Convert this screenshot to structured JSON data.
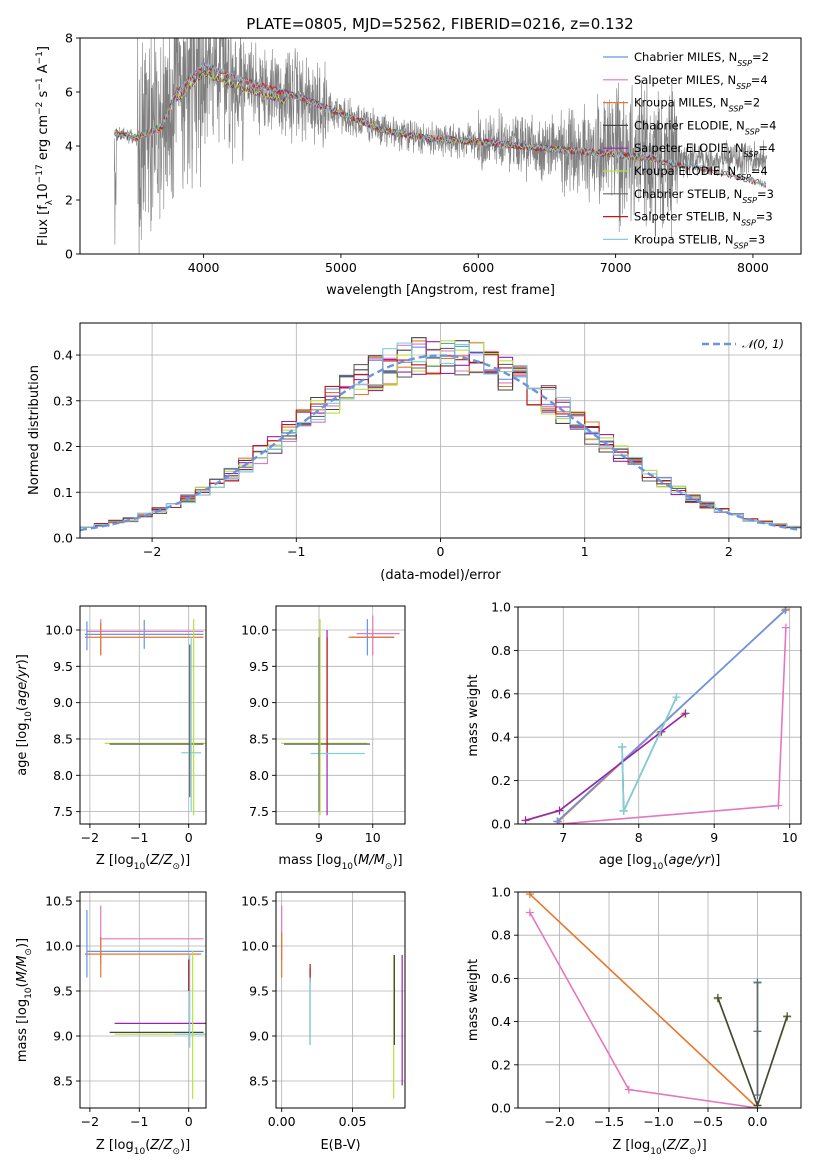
{
  "title": "PLATE=0805, MJD=52562, FIBERID=0216, z=0.132",
  "colors": {
    "chabrier_miles": "#6495ed",
    "salpeter_miles": "#e377c2",
    "kroupa_miles": "#e8762b",
    "chabrier_elodie": "#444444",
    "salpeter_elodie": "#9a22b5",
    "kroupa_elodie": "#b9e23e",
    "chabrier_stelib": "#666666",
    "salpeter_stelib": "#c0181b",
    "kroupa_stelib": "#7fd0dc",
    "data": "#7f7f7f",
    "gauss": "#6b94dc"
  },
  "chart_data": [
    {
      "panel": "spectrum",
      "type": "line",
      "title": "PLATE=0805, MJD=52562, FIBERID=0216, z=0.132",
      "xlabel": "wavelength [Angstrom, rest frame]",
      "ylabel": "Flux [f_λ 10^-17 erg cm^-2 s^-1 A^-1]",
      "xlim": [
        3100,
        8350
      ],
      "ylim": [
        0,
        8
      ],
      "xticks": [
        "4000",
        "5000",
        "6000",
        "7000",
        "8000"
      ],
      "yticks": [
        "0",
        "2",
        "4",
        "6",
        "8"
      ],
      "legend_position": "upper right",
      "legend": [
        "Chabrier MILES, N_SSP=2",
        "Salpeter MILES, N_SSP=4",
        "Kroupa MILES, N_SSP=2",
        "Chabrier ELODIE, N_SSP=4",
        "Salpeter ELODIE, N_SSP=4",
        "Kroupa ELODIE, N_SSP=4",
        "Chabrier STELIB, N_SSP=3",
        "Salpeter STELIB, N_SSP=3",
        "Kroupa STELIB, N_SSP=3"
      ],
      "model_continuum": {
        "x": [
          3350,
          3500,
          3600,
          3700,
          3800,
          3900,
          4000,
          4100,
          4200,
          4300,
          4500,
          4700,
          5000,
          5300,
          5600,
          6000,
          6500,
          7000,
          7300
        ],
        "y": [
          4.5,
          4.3,
          4.5,
          4.75,
          6.0,
          6.5,
          7.0,
          6.8,
          6.6,
          6.4,
          6.1,
          5.8,
          5.2,
          4.6,
          4.3,
          4.15,
          3.9,
          3.7,
          3.5
        ]
      },
      "stelib_extension": {
        "x": [
          7300,
          7600,
          7900,
          8100
        ],
        "y": [
          3.45,
          3.2,
          2.85,
          2.55
        ]
      }
    },
    {
      "panel": "residual_histogram",
      "type": "step",
      "xlabel": "(data-model)/error",
      "ylabel": "Normed distribution",
      "xlim": [
        -2.5,
        2.5
      ],
      "ylim": [
        0,
        0.47
      ],
      "xticks": [
        "−2",
        "−1",
        "0",
        "1",
        "2"
      ],
      "yticks": [
        "0.0",
        "0.1",
        "0.2",
        "0.3",
        "0.4"
      ],
      "gauss_label": "𝒩(0, 1)",
      "legend_position": "upper right",
      "bin_width": 0.1
    },
    {
      "panel": "age_vs_Z",
      "type": "errorbar",
      "xlabel": "Z [log10(Z/Z⊙)]",
      "ylabel": "age [log10(age/yr)]",
      "xlim": [
        -2.2,
        0.35
      ],
      "ylim": [
        7.33,
        10.33
      ],
      "xticks": [
        "−2",
        "−1",
        "0"
      ],
      "yticks": [
        "7.5",
        "8.0",
        "8.5",
        "9.0",
        "9.5",
        "10.0"
      ]
    },
    {
      "panel": "age_vs_mass",
      "type": "errorbar",
      "xlabel": "mass [log10(M/M⊙)]",
      "xlim": [
        8.2,
        10.6
      ],
      "ylim": [
        7.33,
        10.33
      ],
      "xticks": [
        "9",
        "10"
      ],
      "yticks": [
        "7.5",
        "8.0",
        "8.5",
        "9.0",
        "9.5",
        "10.0"
      ]
    },
    {
      "panel": "massweight_vs_age",
      "type": "line",
      "xlabel": "age [log10(age/yr)]",
      "ylabel": "mass weight",
      "xlim": [
        6.4,
        10.15
      ],
      "ylim": [
        0,
        1
      ],
      "xticks": [
        "7",
        "8",
        "9",
        "10"
      ],
      "yticks": [
        "0.0",
        "0.2",
        "0.4",
        "0.6",
        "0.8",
        "1.0"
      ],
      "series": [
        {
          "color": "kroupa_miles",
          "x": [
            6.93,
            9.95
          ],
          "y": [
            0.01,
            0.99
          ]
        },
        {
          "color": "salpeter_miles",
          "x": [
            6.95,
            9.85,
            9.95
          ],
          "y": [
            0.0,
            0.085,
            0.905
          ]
        },
        {
          "color": "chabrier_miles",
          "x": [
            6.92,
            9.94
          ],
          "y": [
            0.012,
            0.985
          ]
        },
        {
          "color": "kroupa_elodie",
          "x": [
            6.5,
            6.95,
            8.28,
            8.6
          ],
          "y": [
            0.015,
            0.06,
            0.42,
            0.505
          ]
        },
        {
          "color": "salpeter_elodie",
          "x": [
            6.5,
            6.95,
            8.3,
            8.62
          ],
          "y": [
            0.017,
            0.062,
            0.425,
            0.51
          ]
        },
        {
          "color": "chabrier_stelib",
          "x": [
            7.78,
            7.8,
            8.5
          ],
          "y": [
            0.355,
            0.06,
            0.585
          ]
        },
        {
          "color": "kroupa_stelib",
          "x": [
            7.78,
            7.8,
            8.5
          ],
          "y": [
            0.355,
            0.06,
            0.585
          ]
        }
      ]
    },
    {
      "panel": "mass_vs_Z",
      "type": "errorbar",
      "xlabel": "Z [log10(Z/Z⊙)]",
      "ylabel": "mass [log10(M/M⊙)]",
      "xlim": [
        -2.2,
        0.35
      ],
      "ylim": [
        8.2,
        10.6
      ],
      "xticks": [
        "−2",
        "−1",
        "0"
      ],
      "yticks": [
        "8.5",
        "9.0",
        "9.5",
        "10.0",
        "10.5"
      ]
    },
    {
      "panel": "mass_vs_EBV",
      "type": "errorbar",
      "xlabel": "E(B-V)",
      "xlim": [
        -0.004,
        0.087
      ],
      "ylim": [
        8.2,
        10.6
      ],
      "xticks": [
        "0.00",
        "0.05"
      ],
      "yticks": [
        "8.5",
        "9.0",
        "9.5",
        "10.0",
        "10.5"
      ]
    },
    {
      "panel": "massweight_vs_Z",
      "type": "line",
      "xlabel": "Z [log10(Z/Z⊙)]",
      "ylabel": "mass weight",
      "xlim": [
        -2.42,
        0.44
      ],
      "ylim": [
        0,
        1
      ],
      "xticks": [
        "−2.0",
        "−1.5",
        "−1.0",
        "−0.5",
        "0.0"
      ],
      "yticks": [
        "0.0",
        "0.2",
        "0.4",
        "0.6",
        "0.8",
        "1.0"
      ],
      "series": [
        {
          "color": "kroupa_miles",
          "x": [
            -2.3,
            0.0
          ],
          "y": [
            0.99,
            0.0
          ]
        },
        {
          "color": "salpeter_miles",
          "x": [
            -2.3,
            -1.3,
            0.0
          ],
          "y": [
            0.905,
            0.085,
            0.0
          ]
        },
        {
          "color": "kroupa_elodie",
          "x": [
            -0.4,
            0.0,
            0.3
          ],
          "y": [
            0.505,
            0.01,
            0.42
          ]
        },
        {
          "color": "chabrier_elodie",
          "x": [
            -0.4,
            0.0,
            0.3
          ],
          "y": [
            0.51,
            0.012,
            0.425
          ]
        },
        {
          "color": "kroupa_stelib",
          "x": [
            0.0,
            0.0,
            0.0
          ],
          "y": [
            0.585,
            0.06,
            0.355
          ]
        },
        {
          "color": "chabrier_stelib",
          "x": [
            0.0,
            0.0,
            0.0
          ],
          "y": [
            0.58,
            0.06,
            0.355
          ]
        }
      ]
    }
  ]
}
